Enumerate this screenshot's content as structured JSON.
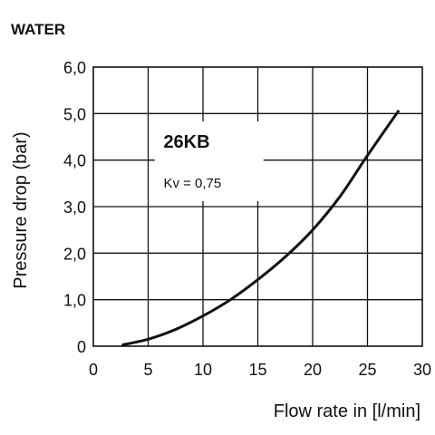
{
  "header": {
    "title": "WATER"
  },
  "chart_data": {
    "type": "line",
    "title": "WATER",
    "xlabel": "Flow rate in [l/min]",
    "ylabel": "Pressure drop (bar)",
    "xlim": [
      0,
      30
    ],
    "ylim": [
      0,
      6
    ],
    "x_ticks": [
      "0",
      "5",
      "10",
      "15",
      "20",
      "25",
      "30"
    ],
    "y_ticks": [
      "0",
      "1,0",
      "2,0",
      "3,0",
      "4,0",
      "5,0",
      "6,0"
    ],
    "grid": true,
    "annotations": {
      "model": "26KB",
      "kv": "Kv = 0,75"
    },
    "series": [
      {
        "x": [
          2.7,
          5,
          7.5,
          10,
          12.5,
          15,
          17.5,
          20,
          22.5,
          25,
          27.8
        ],
        "y": [
          0.03,
          0.15,
          0.36,
          0.65,
          1.0,
          1.43,
          1.92,
          2.5,
          3.22,
          4.1,
          5.05
        ]
      }
    ]
  }
}
